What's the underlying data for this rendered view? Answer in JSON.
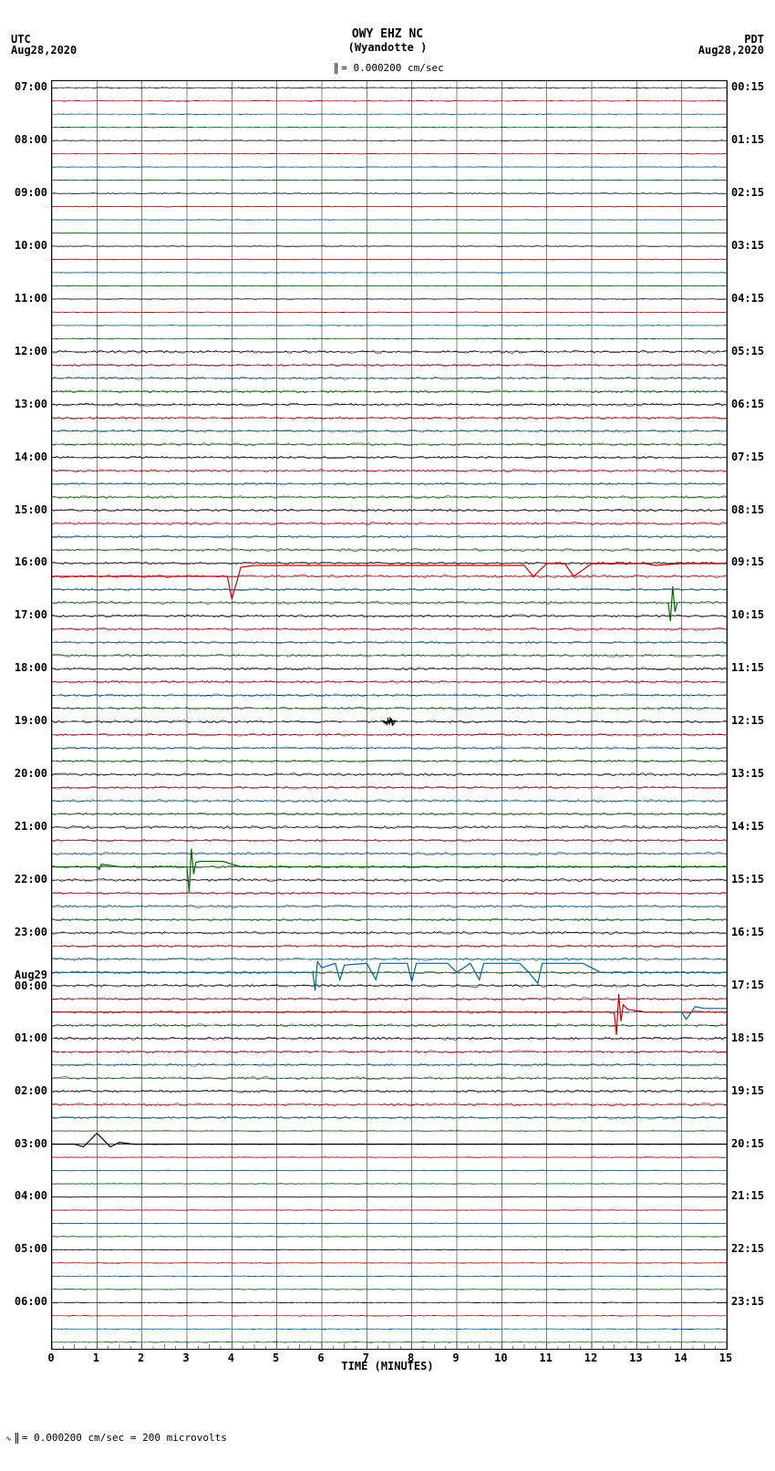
{
  "header": {
    "left_tz": "UTC",
    "left_date": "Aug28,2020",
    "station": "OWY EHZ NC",
    "location": "(Wyandotte )",
    "scale_text": "= 0.000200 cm/sec",
    "right_tz": "PDT",
    "right_date": "Aug28,2020"
  },
  "plot": {
    "x_min": 0,
    "x_max": 15,
    "x_label": "TIME (MINUTES)",
    "x_ticks": [
      0,
      1,
      2,
      3,
      4,
      5,
      6,
      7,
      8,
      9,
      10,
      11,
      12,
      13,
      14,
      15
    ],
    "n_traces": 96,
    "left_labels": [
      {
        "idx": 0,
        "text": "07:00"
      },
      {
        "idx": 4,
        "text": "08:00"
      },
      {
        "idx": 8,
        "text": "09:00"
      },
      {
        "idx": 12,
        "text": "10:00"
      },
      {
        "idx": 16,
        "text": "11:00"
      },
      {
        "idx": 20,
        "text": "12:00"
      },
      {
        "idx": 24,
        "text": "13:00"
      },
      {
        "idx": 28,
        "text": "14:00"
      },
      {
        "idx": 32,
        "text": "15:00"
      },
      {
        "idx": 36,
        "text": "16:00"
      },
      {
        "idx": 40,
        "text": "17:00"
      },
      {
        "idx": 44,
        "text": "18:00"
      },
      {
        "idx": 48,
        "text": "19:00"
      },
      {
        "idx": 52,
        "text": "20:00"
      },
      {
        "idx": 56,
        "text": "21:00"
      },
      {
        "idx": 60,
        "text": "22:00"
      },
      {
        "idx": 64,
        "text": "23:00"
      },
      {
        "idx": 68,
        "text": "Aug29\n00:00"
      },
      {
        "idx": 72,
        "text": "01:00"
      },
      {
        "idx": 76,
        "text": "02:00"
      },
      {
        "idx": 80,
        "text": "03:00"
      },
      {
        "idx": 84,
        "text": "04:00"
      },
      {
        "idx": 88,
        "text": "05:00"
      },
      {
        "idx": 92,
        "text": "06:00"
      }
    ],
    "right_labels": [
      {
        "idx": 0,
        "text": "00:15"
      },
      {
        "idx": 4,
        "text": "01:15"
      },
      {
        "idx": 8,
        "text": "02:15"
      },
      {
        "idx": 12,
        "text": "03:15"
      },
      {
        "idx": 16,
        "text": "04:15"
      },
      {
        "idx": 20,
        "text": "05:15"
      },
      {
        "idx": 24,
        "text": "06:15"
      },
      {
        "idx": 28,
        "text": "07:15"
      },
      {
        "idx": 32,
        "text": "08:15"
      },
      {
        "idx": 36,
        "text": "09:15"
      },
      {
        "idx": 40,
        "text": "10:15"
      },
      {
        "idx": 44,
        "text": "11:15"
      },
      {
        "idx": 48,
        "text": "12:15"
      },
      {
        "idx": 52,
        "text": "13:15"
      },
      {
        "idx": 56,
        "text": "14:15"
      },
      {
        "idx": 60,
        "text": "15:15"
      },
      {
        "idx": 64,
        "text": "16:15"
      },
      {
        "idx": 68,
        "text": "17:15"
      },
      {
        "idx": 72,
        "text": "18:15"
      },
      {
        "idx": 76,
        "text": "19:15"
      },
      {
        "idx": 80,
        "text": "20:15"
      },
      {
        "idx": 84,
        "text": "21:15"
      },
      {
        "idx": 88,
        "text": "22:15"
      },
      {
        "idx": 92,
        "text": "23:15"
      }
    ],
    "trace_colors": [
      "#000000",
      "#cc0000",
      "#006699",
      "#006600"
    ],
    "noise_amp": 0.5,
    "noise_amp_high": 1.5,
    "noisy_traces_start": 20,
    "noisy_traces_end": 78,
    "events": [
      {
        "trace": 37,
        "color": "#cc0000",
        "type": "step",
        "points": [
          [
            0,
            0
          ],
          [
            3.9,
            0
          ],
          [
            4.0,
            -25
          ],
          [
            4.2,
            10
          ],
          [
            4.5,
            12
          ],
          [
            10.5,
            12
          ],
          [
            10.7,
            0
          ],
          [
            11.0,
            14
          ],
          [
            11.4,
            14
          ],
          [
            11.6,
            0
          ],
          [
            12.0,
            14
          ],
          [
            13.2,
            14
          ],
          [
            13.4,
            12
          ],
          [
            14.0,
            14
          ],
          [
            15,
            14
          ]
        ]
      },
      {
        "trace": 39,
        "color": "#006600",
        "type": "spike",
        "points": [
          [
            13.7,
            0
          ],
          [
            13.75,
            -20
          ],
          [
            13.8,
            18
          ],
          [
            13.85,
            -10
          ],
          [
            13.9,
            0
          ]
        ]
      },
      {
        "trace": 48,
        "color": "#000000",
        "type": "burst",
        "x": 7.5,
        "w": 0.3,
        "amp": 6
      },
      {
        "trace": 59,
        "color": "#006600",
        "type": "step",
        "points": [
          [
            0,
            0
          ],
          [
            1.0,
            0
          ],
          [
            1.05,
            -3
          ],
          [
            1.1,
            3
          ],
          [
            1.5,
            0
          ],
          [
            3.0,
            0
          ],
          [
            3.05,
            -28
          ],
          [
            3.1,
            20
          ],
          [
            3.15,
            -8
          ],
          [
            3.2,
            5
          ],
          [
            3.3,
            6
          ],
          [
            3.8,
            6
          ],
          [
            4.2,
            0
          ],
          [
            15,
            0
          ]
        ]
      },
      {
        "trace": 67,
        "color": "#006699",
        "type": "step",
        "points": [
          [
            0,
            0
          ],
          [
            5.8,
            0
          ],
          [
            5.85,
            -20
          ],
          [
            5.9,
            12
          ],
          [
            6.0,
            5
          ],
          [
            6.3,
            10
          ],
          [
            6.4,
            -8
          ],
          [
            6.5,
            8
          ],
          [
            7.0,
            10
          ],
          [
            7.2,
            -8
          ],
          [
            7.3,
            10
          ],
          [
            7.9,
            10
          ],
          [
            8.0,
            -10
          ],
          [
            8.1,
            10
          ],
          [
            8.8,
            10
          ],
          [
            9.0,
            0
          ],
          [
            9.3,
            10
          ],
          [
            9.5,
            -8
          ],
          [
            9.6,
            10
          ],
          [
            10.4,
            10
          ],
          [
            10.6,
            0
          ],
          [
            10.8,
            -12
          ],
          [
            10.9,
            10
          ],
          [
            11.8,
            10
          ],
          [
            12.2,
            0
          ],
          [
            12.8,
            0
          ],
          [
            15,
            0
          ]
        ]
      },
      {
        "trace": 70,
        "color": "#cc0000",
        "type": "step",
        "points": [
          [
            0,
            0
          ],
          [
            12.5,
            0
          ],
          [
            12.55,
            -25
          ],
          [
            12.6,
            20
          ],
          [
            12.65,
            -10
          ],
          [
            12.7,
            8
          ],
          [
            12.8,
            3
          ],
          [
            13.2,
            0
          ],
          [
            15,
            0
          ]
        ]
      },
      {
        "trace": 70,
        "color": "#006699",
        "type": "step",
        "points": [
          [
            13.8,
            0
          ],
          [
            14.0,
            0
          ],
          [
            14.1,
            -8
          ],
          [
            14.3,
            6
          ],
          [
            14.5,
            4
          ],
          [
            15,
            4
          ]
        ]
      },
      {
        "trace": 80,
        "color": "#000000",
        "type": "step",
        "points": [
          [
            0,
            0
          ],
          [
            0.5,
            0
          ],
          [
            0.7,
            -3
          ],
          [
            1.0,
            12
          ],
          [
            1.3,
            -3
          ],
          [
            1.5,
            2
          ],
          [
            1.8,
            0
          ],
          [
            15,
            0
          ]
        ]
      }
    ],
    "grid_color": "#000000",
    "minor_grid_color": "#808080",
    "background": "#ffffff"
  },
  "footer": {
    "text": "= 0.000200 cm/sec =    200 microvolts"
  }
}
